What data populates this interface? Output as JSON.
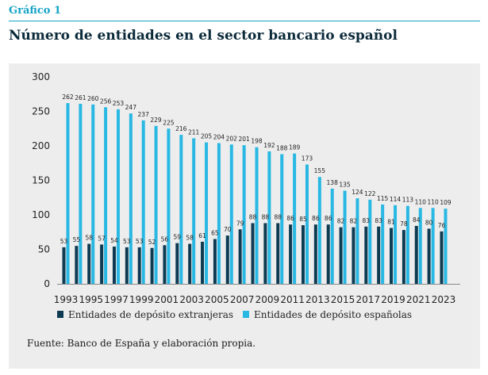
{
  "header": {
    "label": "Gráfico 1",
    "title": "Número de entidades en el sector bancario español"
  },
  "source": "Fuente: Banco de España y elaboración propia.",
  "colors": {
    "foreign": "#0e3b52",
    "spanish": "#29b8e3"
  },
  "chart_data": {
    "type": "bar",
    "categories": [
      "1993",
      "1994",
      "1995",
      "1996",
      "1997",
      "1998",
      "1999",
      "2000",
      "2001",
      "2002",
      "2003",
      "2004",
      "2005",
      "2006",
      "2007",
      "2008",
      "2009",
      "2010",
      "2011",
      "2012",
      "2013",
      "2014",
      "2015",
      "2016",
      "2017",
      "2018",
      "2019",
      "2020",
      "2021",
      "2022",
      "2023"
    ],
    "x_tick_labels": [
      "1993",
      "1995",
      "1997",
      "1999",
      "2001",
      "2003",
      "2005",
      "2007",
      "2009",
      "2011",
      "2013",
      "2015",
      "2017",
      "2019",
      "2021",
      "2023"
    ],
    "series": [
      {
        "name": "Entidades de depósito extranjeras",
        "values": [
          53,
          55,
          58,
          57,
          54,
          53,
          53,
          52,
          56,
          59,
          58,
          61,
          65,
          70,
          79,
          88,
          88,
          88,
          86,
          85,
          86,
          86,
          82,
          82,
          83,
          83,
          81,
          78,
          84,
          80,
          76
        ],
        "value_labels": [
          "53",
          "55",
          "58",
          "57",
          "54",
          "53",
          "53",
          "52",
          "56",
          "59",
          "58",
          "61",
          "65",
          "70",
          "79",
          "88",
          "88",
          "88",
          "86",
          "85",
          "86",
          "86",
          "82",
          "82",
          "83",
          "83",
          "81",
          "78",
          "84",
          "80",
          "76"
        ]
      },
      {
        "name": "Entidades de depósito españolas",
        "values": [
          262,
          261,
          260,
          256,
          253,
          247,
          237,
          229,
          225,
          216,
          211,
          205,
          204,
          202,
          201,
          198,
          192,
          188,
          189,
          173,
          155,
          138,
          135,
          124,
          122,
          115,
          114,
          113,
          110,
          110,
          109
        ],
        "value_labels": [
          "262",
          "261",
          "260",
          "256",
          "253",
          "247",
          "237",
          "229",
          "225",
          "216",
          "211",
          "205",
          "204",
          "202",
          "201",
          "198",
          "192",
          "188",
          "189",
          "173",
          "155",
          "138",
          "135",
          "124",
          "122",
          "115",
          "114",
          "113",
          "110",
          "110",
          "109"
        ]
      }
    ],
    "ylim": [
      0,
      300
    ],
    "yticks": [
      "0",
      "50",
      "100",
      "150",
      "200",
      "250",
      "300"
    ],
    "grid": false,
    "legend": "bottom"
  }
}
